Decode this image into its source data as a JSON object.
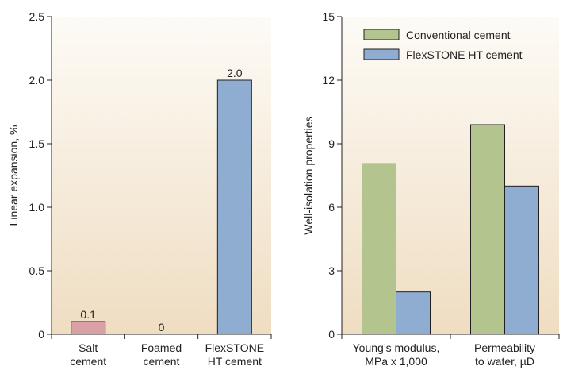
{
  "colors": {
    "bg_top": "#fdfbf6",
    "bg_bottom": "#efddc2",
    "salt": "#d9a0a6",
    "conventional": "#b3c48f",
    "flexstone": "#8fadd0",
    "axis": "#231f20"
  },
  "chart_data": [
    {
      "type": "bar",
      "ylabel": "Linear expansion, %",
      "ylim": [
        0,
        2.5
      ],
      "yticks": [
        "0",
        "0.5",
        "1.0",
        "1.5",
        "2.0",
        "2.5"
      ],
      "ytick_values": [
        0,
        0.5,
        1.0,
        1.5,
        2.0,
        2.5
      ],
      "categories": [
        [
          "Salt",
          "cement"
        ],
        [
          "Foamed",
          "cement"
        ],
        [
          "FlexSTONE",
          "HT cement"
        ]
      ],
      "values": [
        0.1,
        0,
        2.0
      ],
      "data_labels": [
        "0.1",
        "0",
        "2.0"
      ],
      "bar_colors": [
        "salt",
        "none",
        "flexstone"
      ],
      "grid": false,
      "legend": null
    },
    {
      "type": "bar",
      "ylabel": "Well-isolation properties",
      "ylim": [
        0,
        15
      ],
      "yticks": [
        "0",
        "3",
        "6",
        "9",
        "12",
        "15"
      ],
      "ytick_values": [
        0,
        3,
        6,
        9,
        12,
        15
      ],
      "categories": [
        [
          "Young’s modulus,",
          "MPa x 1,000"
        ],
        [
          "Permeability",
          "to water, µD"
        ]
      ],
      "series": [
        {
          "name": "Conventional cement",
          "values": [
            8.05,
            9.9
          ],
          "color": "conventional"
        },
        {
          "name": "FlexSTONE HT cement",
          "values": [
            2.0,
            7.0
          ],
          "color": "flexstone"
        }
      ],
      "grid": false,
      "legend": "top-left"
    }
  ]
}
